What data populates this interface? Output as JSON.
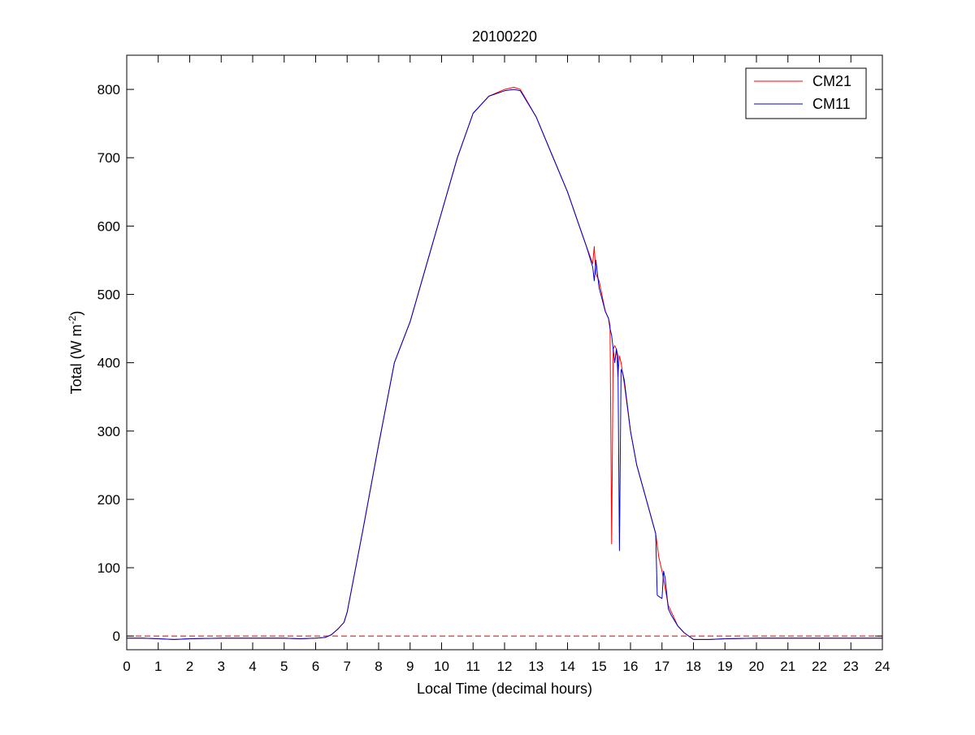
{
  "chart_data": {
    "type": "line",
    "title": "20100220",
    "xlabel": "Local Time (decimal hours)",
    "ylabel": {
      "prefix": "Total (W m",
      "sup": "-2",
      "suffix": ")"
    },
    "xlim": [
      0,
      24
    ],
    "ylim": [
      -20,
      850
    ],
    "xticks": [
      0,
      1,
      2,
      3,
      4,
      5,
      6,
      7,
      8,
      9,
      10,
      11,
      12,
      13,
      14,
      15,
      16,
      17,
      18,
      19,
      20,
      21,
      22,
      23,
      24
    ],
    "yticks": [
      0,
      100,
      200,
      300,
      400,
      500,
      600,
      700,
      800
    ],
    "grid": false,
    "legend_position": "top-right",
    "reference_line": {
      "y": 0,
      "style": "dashed",
      "color": "#cc0000"
    },
    "series": [
      {
        "name": "CM21",
        "color": "#ff0000",
        "x": [
          0,
          0.5,
          1,
          1.5,
          2,
          3,
          4,
          5,
          5.5,
          6,
          6.3,
          6.5,
          6.7,
          6.9,
          7,
          7.5,
          8,
          8.5,
          9,
          9.5,
          10,
          10.5,
          11,
          11.5,
          12,
          12.3,
          12.5,
          13,
          13.5,
          14,
          14.3,
          14.6,
          14.8,
          14.85,
          14.9,
          15,
          15.2,
          15.3,
          15.35,
          15.4,
          15.45,
          15.5,
          15.55,
          15.6,
          15.65,
          15.7,
          15.75,
          15.8,
          16,
          16.2,
          16.5,
          16.8,
          16.9,
          17,
          17.1,
          17.2,
          17.3,
          17.5,
          17.7,
          18,
          18.2,
          18.5,
          19,
          20,
          21,
          22,
          23,
          24
        ],
        "y": [
          -3,
          -3,
          -4,
          -5,
          -4,
          -3,
          -3,
          -3,
          -4,
          -3,
          -2,
          2,
          10,
          20,
          35,
          155,
          280,
          400,
          460,
          540,
          620,
          700,
          765,
          790,
          800,
          803,
          800,
          760,
          705,
          650,
          610,
          570,
          545,
          570,
          530,
          520,
          475,
          465,
          455,
          135,
          420,
          425,
          420,
          380,
          410,
          400,
          385,
          370,
          300,
          250,
          200,
          150,
          115,
          95,
          70,
          45,
          35,
          15,
          5,
          -5,
          -5,
          -5,
          -4,
          -3,
          -3,
          -3,
          -3,
          -3
        ]
      },
      {
        "name": "CM11",
        "color": "#0000cc",
        "x": [
          0,
          0.5,
          1,
          1.5,
          2,
          3,
          4,
          5,
          5.5,
          6,
          6.3,
          6.5,
          6.7,
          6.9,
          7,
          7.5,
          8,
          8.5,
          9,
          9.5,
          10,
          10.5,
          11,
          11.5,
          12,
          12.3,
          12.5,
          13,
          13.5,
          14,
          14.3,
          14.6,
          14.8,
          14.85,
          14.9,
          15,
          15.2,
          15.3,
          15.35,
          15.4,
          15.5,
          15.55,
          15.6,
          15.65,
          15.7,
          15.75,
          15.8,
          16,
          16.2,
          16.5,
          16.8,
          16.85,
          16.9,
          17,
          17.05,
          17.1,
          17.2,
          17.3,
          17.5,
          17.7,
          18,
          18.2,
          18.5,
          19,
          20,
          21,
          22,
          23,
          24
        ],
        "y": [
          -3,
          -3,
          -4,
          -5,
          -4,
          -3,
          -3,
          -3,
          -4,
          -3,
          -2,
          2,
          10,
          20,
          35,
          155,
          280,
          400,
          460,
          540,
          620,
          700,
          765,
          790,
          798,
          800,
          798,
          760,
          705,
          650,
          610,
          570,
          540,
          520,
          550,
          510,
          475,
          465,
          450,
          440,
          400,
          420,
          410,
          125,
          390,
          385,
          375,
          300,
          250,
          200,
          150,
          60,
          58,
          55,
          95,
          85,
          40,
          30,
          15,
          5,
          -5,
          -5,
          -5,
          -4,
          -3,
          -3,
          -3,
          -3,
          -3
        ]
      }
    ]
  }
}
